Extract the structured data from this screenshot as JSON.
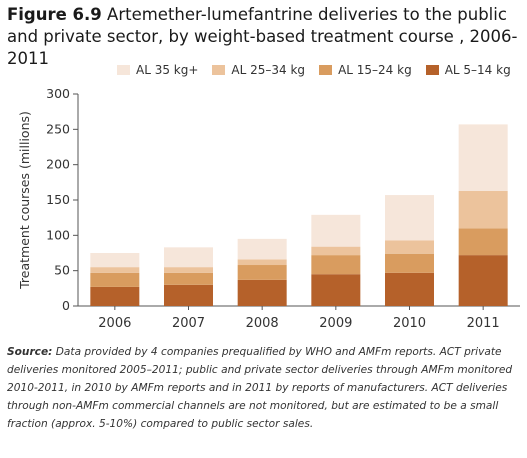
{
  "figure": {
    "label": "Figure 6.9",
    "title": "Artemether-lumefantrine deliveries to the public and private sector, by weight-based treatment course , 2006-2011"
  },
  "chart_data": {
    "type": "bar",
    "stacked": true,
    "categories": [
      "2006",
      "2007",
      "2008",
      "2009",
      "2010",
      "2011"
    ],
    "series": [
      {
        "name": "AL 5–14 kg",
        "color": "#b5612a",
        "values": [
          27,
          30,
          37,
          45,
          47,
          72
        ]
      },
      {
        "name": "AL 15–24 kg",
        "color": "#d99c5f",
        "values": [
          20,
          17,
          21,
          27,
          27,
          38
        ]
      },
      {
        "name": "AL 25–34 kg",
        "color": "#ecc39c",
        "values": [
          8,
          8,
          8,
          12,
          19,
          53
        ]
      },
      {
        "name": "AL 35 kg+",
        "color": "#f6e6da",
        "values": [
          20,
          28,
          29,
          45,
          64,
          94
        ]
      }
    ],
    "legend_order": [
      "AL 35 kg+",
      "AL 25–34 kg",
      "AL 15–24 kg",
      "AL 5–14 kg"
    ],
    "ylabel": "Treatment courses (millions)",
    "xlabel": "",
    "ylim": [
      0,
      300
    ],
    "yticks": [
      0,
      50,
      100,
      150,
      200,
      250,
      300
    ],
    "grid": false,
    "legend_position": "top-right"
  },
  "source": {
    "label": "Source:",
    "text": "Data provided by 4 companies prequalified by WHO and AMFm reports. ACT private deliveries monitored 2005–2011; public and private sector deliveries through AMFm monitored 2010-2011, in 2010 by AMFm reports and in 2011 by reports of manufacturers. ACT deliveries through non-AMFm commercial channels are not monitored, but are estimated to be a small fraction (approx. 5-10%) compared to public sector sales."
  }
}
